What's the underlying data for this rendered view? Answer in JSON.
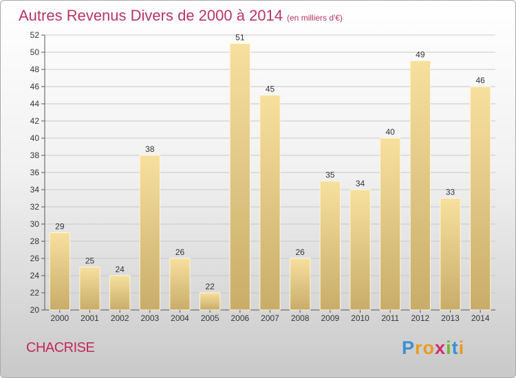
{
  "chart_data": {
    "type": "bar",
    "title": "Autres Revenus Divers de 2000 à 2014",
    "title_unit": "(en milliers d'€)",
    "categories": [
      "2000",
      "2001",
      "2002",
      "2003",
      "2004",
      "2005",
      "2006",
      "2007",
      "2008",
      "2009",
      "2010",
      "2011",
      "2012",
      "2013",
      "2014"
    ],
    "values": [
      29,
      25,
      24,
      38,
      26,
      22,
      51,
      45,
      26,
      35,
      34,
      40,
      49,
      33,
      46
    ],
    "ylim": [
      20,
      52
    ],
    "yticks": [
      20,
      22,
      24,
      26,
      28,
      30,
      32,
      34,
      36,
      38,
      40,
      42,
      44,
      46,
      48,
      50,
      52
    ],
    "grid": true,
    "legend": "none",
    "colors": {
      "bar_top": "#f7e09e",
      "bar_bottom": "#c8ac6a",
      "bar_edge": "#fff6d6",
      "grid": "#c8c8c8",
      "title": "#b5365f"
    }
  },
  "footer": {
    "commune": "CHACRISE",
    "brand_letters": [
      {
        "ch": "P",
        "color": "#3a8fd3"
      },
      {
        "ch": "r",
        "color": "#e89a22"
      },
      {
        "ch": "o",
        "color": "#e89a22"
      },
      {
        "ch": "x",
        "color": "#d6286f"
      },
      {
        "ch": "i",
        "color": "#6ab82f"
      },
      {
        "ch": "t",
        "color": "#3a8fd3"
      },
      {
        "ch": "i",
        "color": "#e89a22"
      }
    ]
  }
}
